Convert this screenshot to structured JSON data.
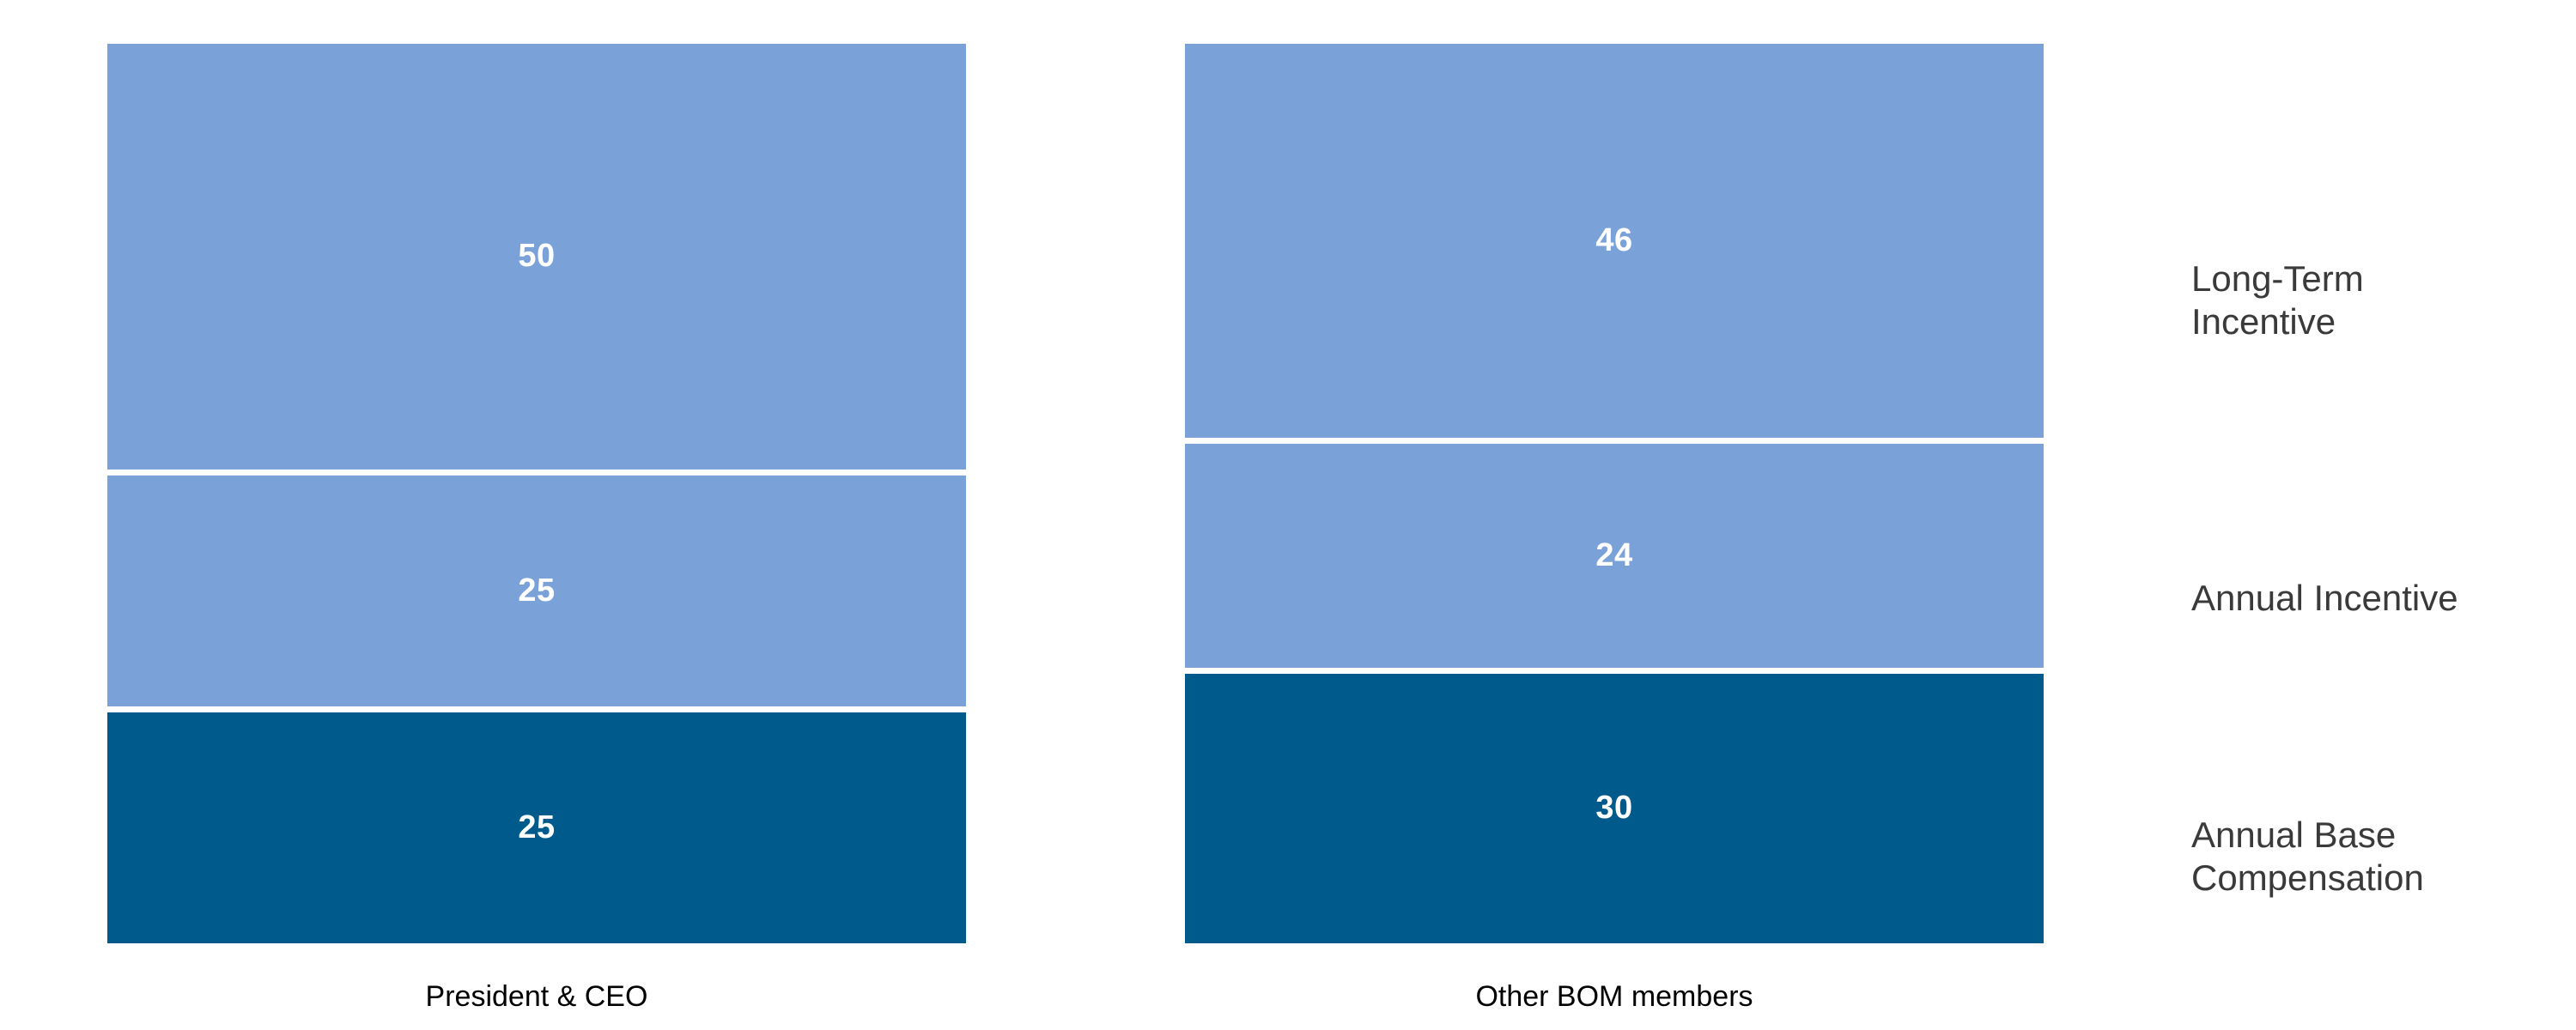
{
  "colors": {
    "background": "#FFFFFF",
    "segment_light_blue": "#7AA2D8",
    "segment_dark_blue": "#005A8C",
    "separator_line": "#FFFFFF",
    "value_label_text": "#FFFFFF",
    "side_label_text": "#3A3A3A",
    "category_label_text": "#000000"
  },
  "chart_data": {
    "type": "bar",
    "stacked": true,
    "orientation": "vertical",
    "title": "",
    "xlabel": "",
    "ylabel": "",
    "categories": [
      "President & CEO",
      "Other BOM members"
    ],
    "series": [
      {
        "name": "Annual Base Compensation",
        "values": [
          25,
          30
        ],
        "color": "#005A8C"
      },
      {
        "name": "Annual Incentive",
        "values": [
          25,
          24
        ],
        "color": "#7AA2D8"
      },
      {
        "name": "Long-Term Incentive",
        "values": [
          50,
          46
        ],
        "color": "#7AA2D8"
      }
    ],
    "ylim": [
      0,
      100
    ],
    "grid": false,
    "axes_shown": false,
    "legend_position": "right-side-row-labels",
    "value_labels": "white bold, centered in each segment"
  }
}
